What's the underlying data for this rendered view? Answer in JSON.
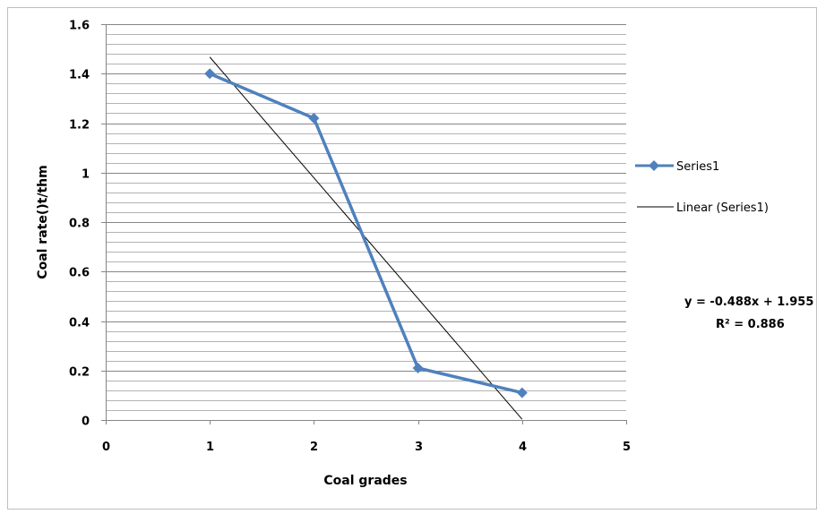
{
  "chart_data": {
    "type": "line",
    "xlabel": "Coal grades",
    "ylabel": "Coal rate()t/thm",
    "xlim": [
      0,
      5
    ],
    "ylim": [
      0,
      1.6
    ],
    "x_ticks": [
      "0",
      "1",
      "2",
      "3",
      "4",
      "5"
    ],
    "y_ticks": [
      "0",
      "0.2",
      "0.4",
      "0.6",
      "0.8",
      "1",
      "1.2",
      "1.4",
      "1.6"
    ],
    "grid": true,
    "legend_position": "right",
    "series": [
      {
        "name": "Series1",
        "x": [
          1,
          2,
          3,
          4
        ],
        "values": [
          1.4,
          1.22,
          0.21,
          0.11
        ],
        "color": "#4F81BD",
        "marker": "diamond"
      }
    ],
    "trendline": {
      "name": "Linear (Series1)",
      "type": "linear",
      "slope": -0.488,
      "intercept": 1.955,
      "x_range": [
        1,
        4
      ],
      "color": "#000000",
      "equation_label": "y = -0.488x + 1.955",
      "r2_label": "R² = 0.886"
    }
  }
}
